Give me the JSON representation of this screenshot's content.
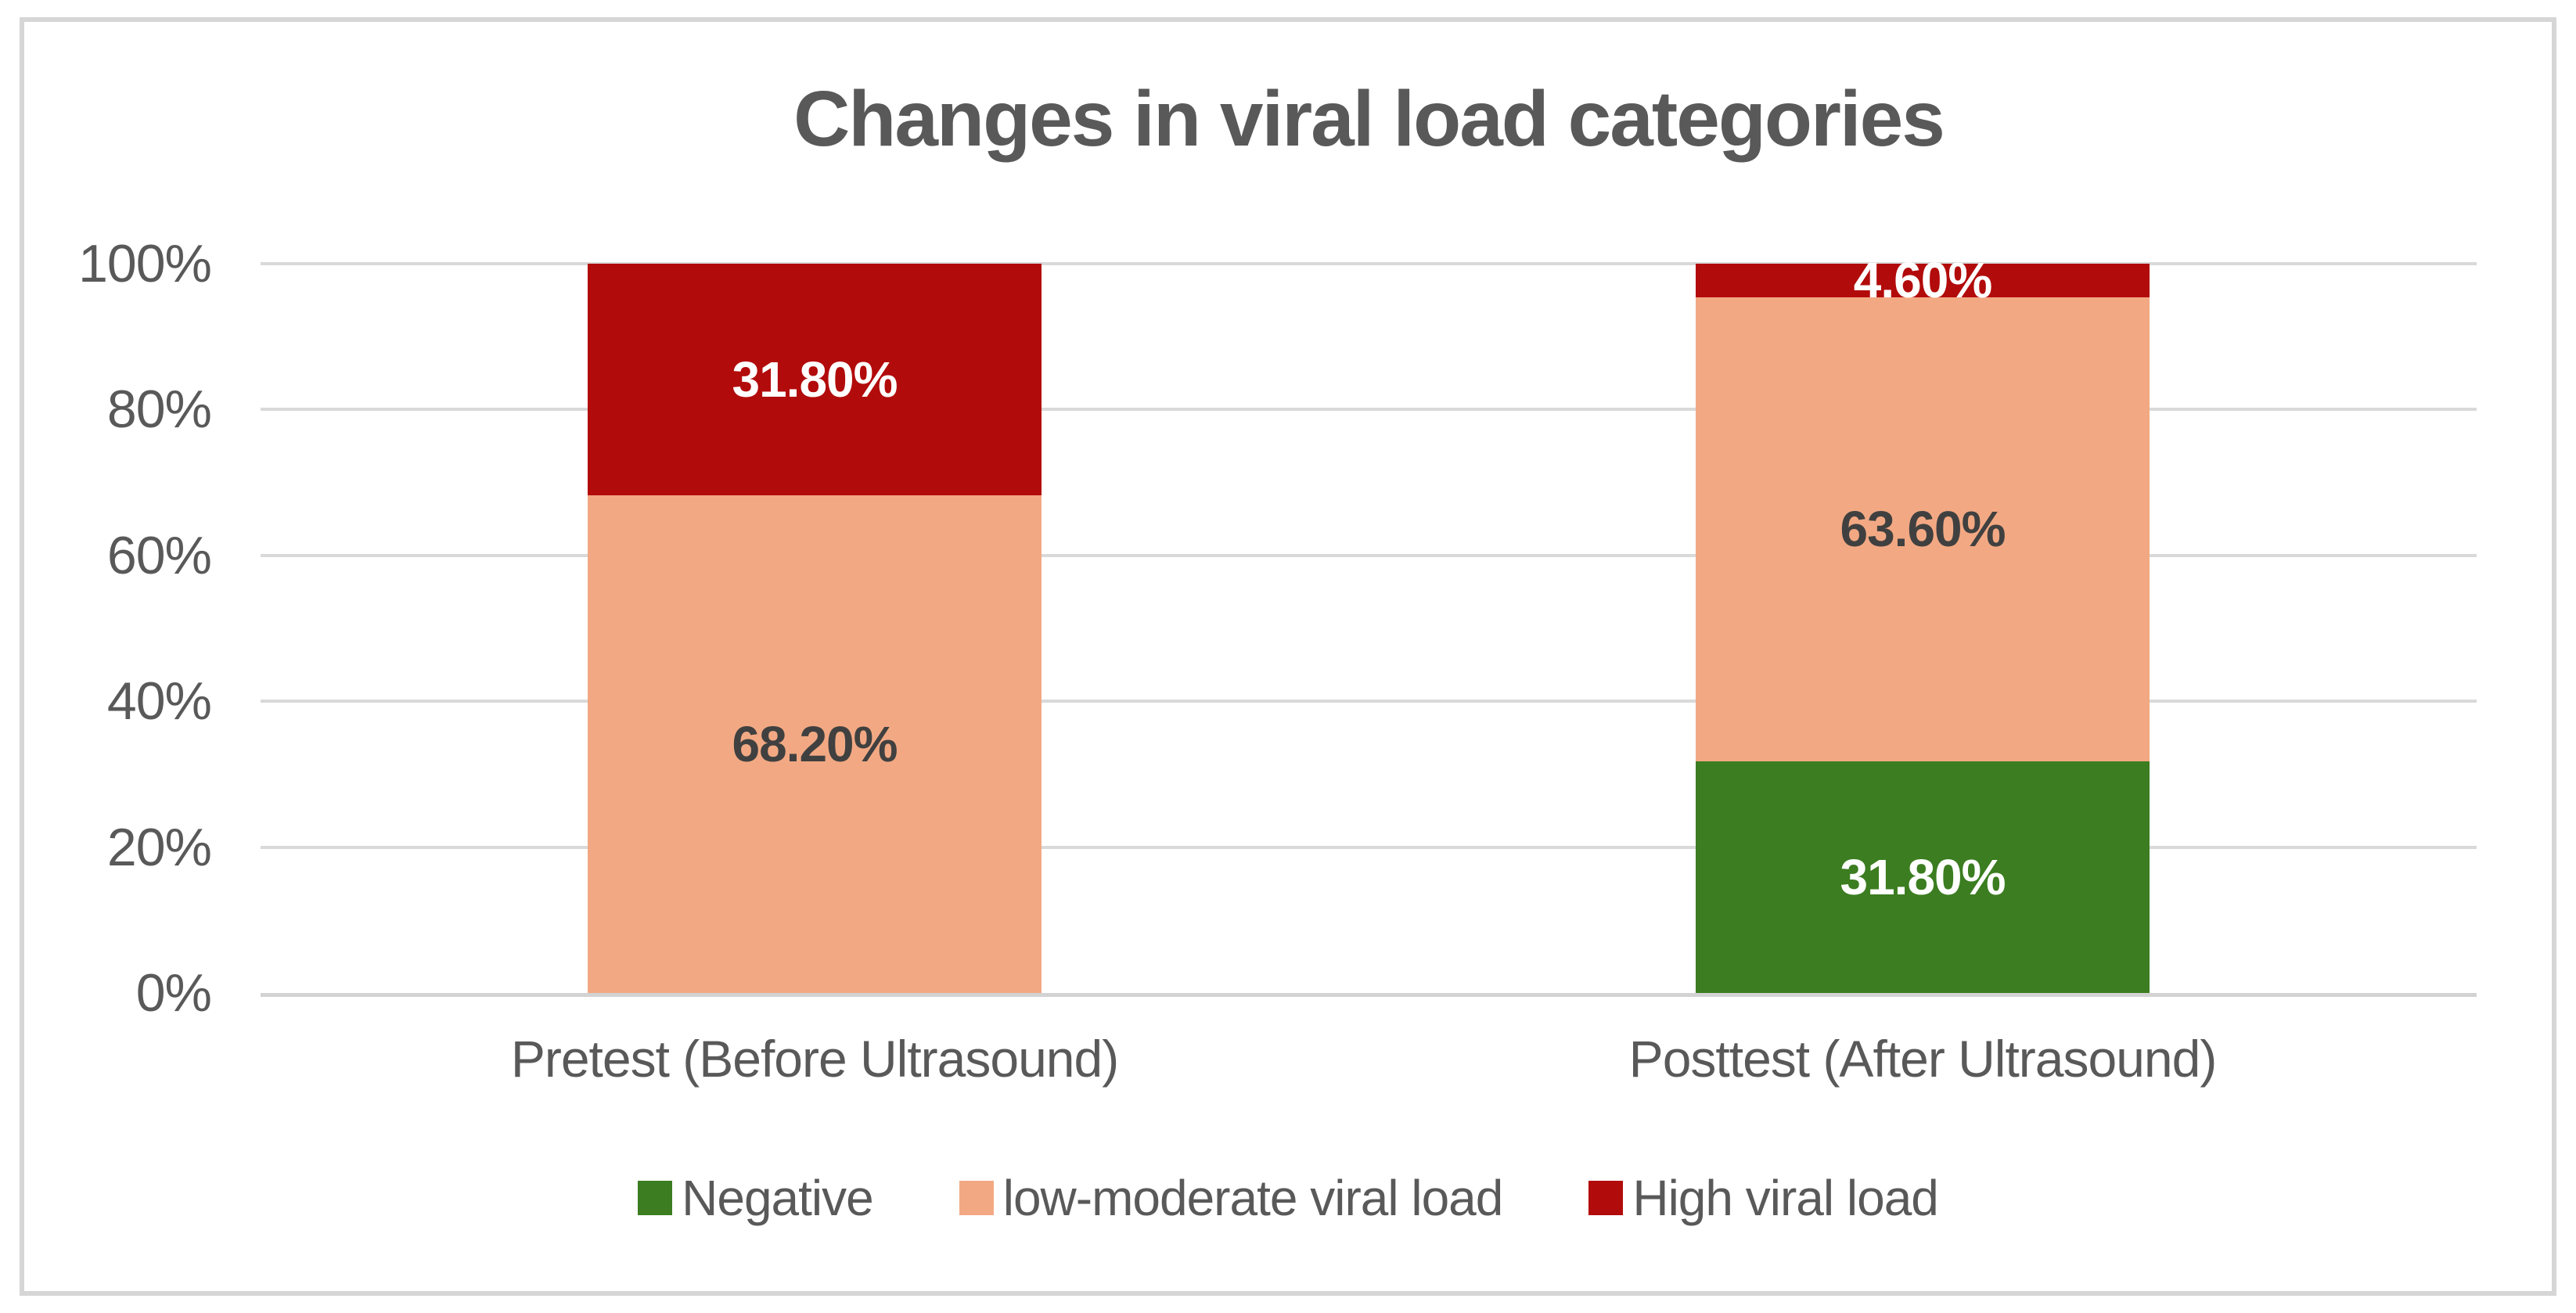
{
  "chart_data": {
    "type": "bar",
    "stacked": true,
    "title": "Changes in viral load categories",
    "categories": [
      "Pretest (Before Ultrasound)",
      "Posttest (After Ultrasound)"
    ],
    "series": [
      {
        "name": "Negative",
        "color": "#3B7D20",
        "label_color": "#FFFFFF",
        "values": [
          0,
          31.8
        ],
        "labels": [
          "",
          "31.80%"
        ]
      },
      {
        "name": "low-moderate viral load",
        "color": "#F2A983",
        "label_color": "#404040",
        "values": [
          68.2,
          63.6
        ],
        "labels": [
          "68.20%",
          "63.60%"
        ]
      },
      {
        "name": "High viral load",
        "color": "#B20B0B",
        "label_color": "#FFFFFF",
        "values": [
          31.8,
          4.6
        ],
        "labels": [
          "31.80%",
          "4.60%"
        ]
      }
    ],
    "y_axis": {
      "min": 0,
      "max": 100,
      "tick_labels": [
        "0%",
        "20%",
        "40%",
        "60%",
        "80%",
        "100%"
      ],
      "grid": true
    },
    "legend": {
      "position": "bottom",
      "entries": [
        "Negative",
        "low-moderate viral load",
        "High viral load"
      ]
    },
    "colors": {
      "title_text": "#595959",
      "axis_text": "#595959",
      "gridline": "#D9D9D9",
      "chart_border": "#D6D6D6",
      "label_on_peach": "#404040",
      "label_on_red_green": "#FFFFFF"
    }
  }
}
